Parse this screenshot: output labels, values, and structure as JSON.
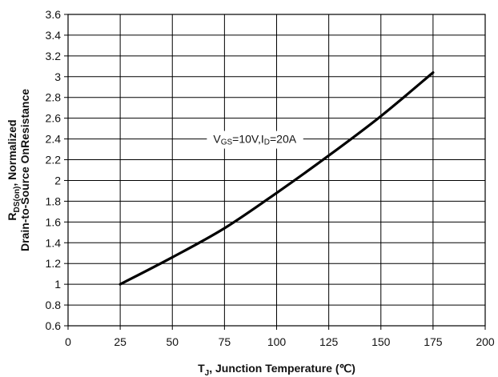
{
  "chart_data": {
    "type": "line",
    "title": "",
    "xlabel": {
      "main": "T",
      "sub": "J",
      "rest": ", Junction Temperature (℃)"
    },
    "ylabel": {
      "line1_main": "R",
      "line1_sub": "DS(on)",
      "line1_rest": ", Normalized",
      "line2": "Drain-to-Source OnResistance"
    },
    "xlim": [
      0,
      200
    ],
    "ylim": [
      0.6,
      3.6
    ],
    "x_ticks": [
      0,
      25,
      50,
      75,
      100,
      125,
      150,
      175,
      200
    ],
    "y_ticks": [
      0.6,
      0.8,
      1,
      1.2,
      1.4,
      1.6,
      1.8,
      2,
      2.2,
      2.4,
      2.6,
      2.8,
      3,
      3.2,
      3.4,
      3.6
    ],
    "x_tick_labels": [
      "0",
      "25",
      "50",
      "75",
      "100",
      "125",
      "150",
      "175",
      "200"
    ],
    "y_tick_labels": [
      "0.6",
      "0.8",
      "1",
      "1.2",
      "1.4",
      "1.6",
      "1.8",
      "2",
      "2.2",
      "2.4",
      "2.6",
      "2.8",
      "3",
      "3.2",
      "3.4",
      "3.6"
    ],
    "grid": true,
    "series": [
      {
        "x": [
          25,
          50,
          75,
          100,
          125,
          150,
          175
        ],
        "y": [
          1.0,
          1.26,
          1.54,
          1.88,
          2.24,
          2.62,
          3.04
        ]
      }
    ],
    "annotation": {
      "parts": [
        {
          "text": "V",
          "sub": false
        },
        {
          "text": "GS",
          "sub": true
        },
        {
          "text": "=10V,I",
          "sub": false
        },
        {
          "text": "D",
          "sub": true
        },
        {
          "text": "=20A",
          "sub": false
        }
      ],
      "anchor_x": 75,
      "anchor_y": 2.4
    },
    "line_color": "#000000",
    "grid_color": "#000000"
  }
}
